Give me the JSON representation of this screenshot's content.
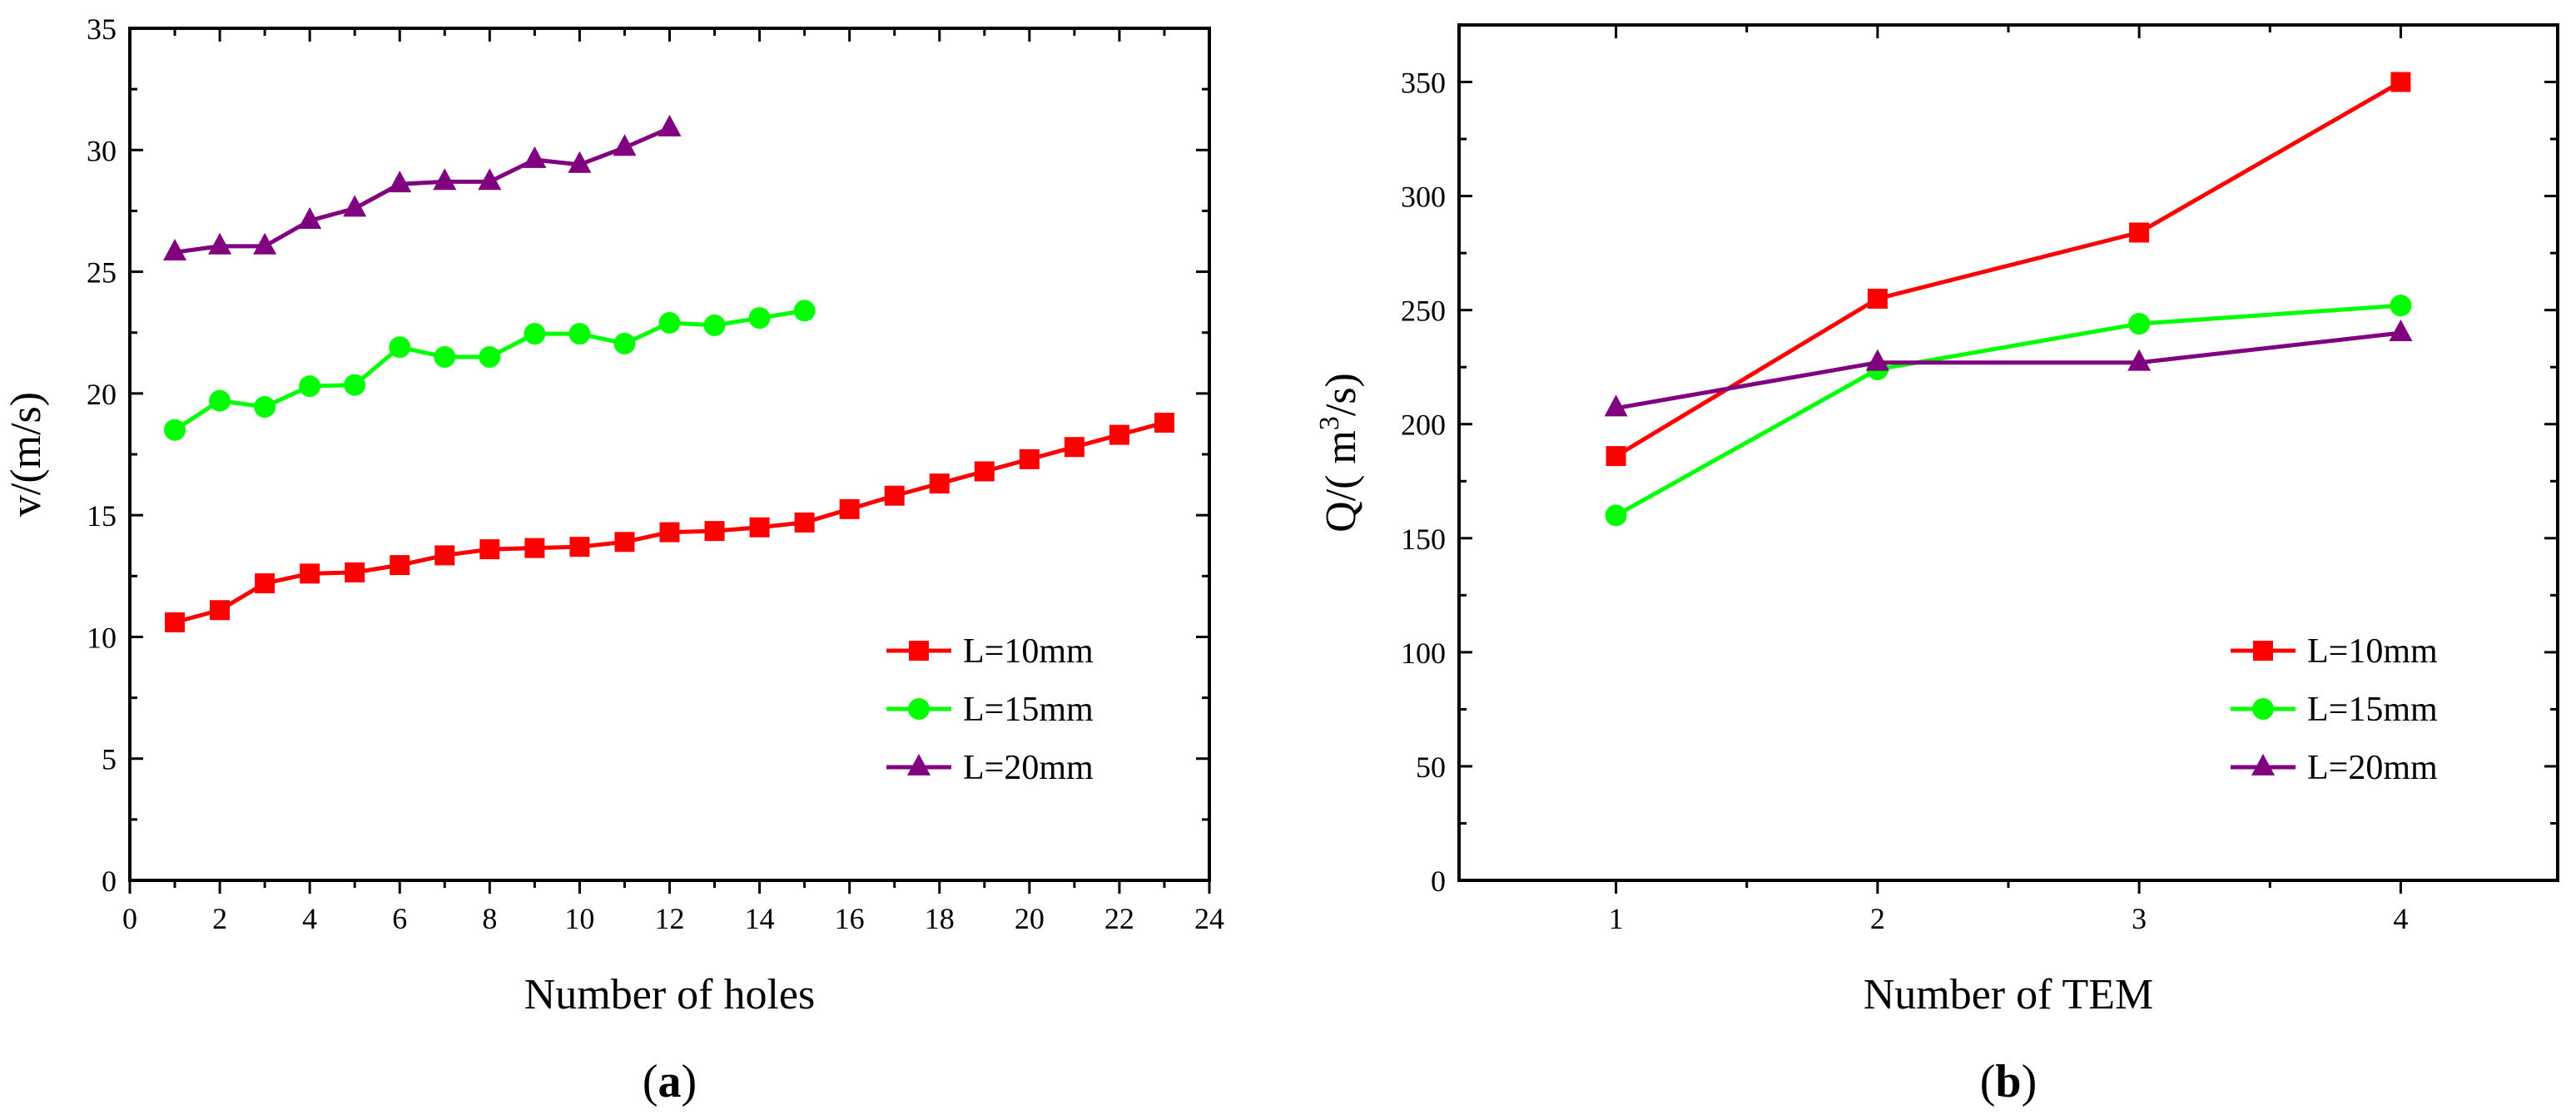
{
  "colors": {
    "L10": "#ff0000",
    "L15": "#00ff00",
    "L20": "#800080",
    "axis": "#000000"
  },
  "chart_data": [
    {
      "id": "a",
      "type": "line",
      "caption": {
        "open": "(",
        "letter": "a",
        "close": ")"
      },
      "xlabel": "Number of holes",
      "ylabel": "v/(m/s)",
      "xlim": [
        0,
        24
      ],
      "ylim": [
        0,
        35
      ],
      "xticks": [
        0,
        2,
        4,
        6,
        8,
        10,
        12,
        14,
        16,
        18,
        20,
        22,
        24
      ],
      "yticks": [
        0,
        5,
        10,
        15,
        20,
        25,
        30,
        35
      ],
      "legend_position": "lower-right",
      "series": [
        {
          "name": "L=10mm",
          "color_key": "L10",
          "marker": "square",
          "x": [
            1,
            2,
            3,
            4,
            5,
            6,
            7,
            8,
            9,
            10,
            11,
            12,
            13,
            14,
            15,
            16,
            17,
            18,
            19,
            20,
            21,
            22,
            23
          ],
          "y": [
            10.6,
            11.1,
            12.2,
            12.6,
            12.65,
            12.95,
            13.35,
            13.6,
            13.65,
            13.7,
            13.9,
            14.3,
            14.35,
            14.5,
            14.7,
            15.25,
            15.8,
            16.3,
            16.8,
            17.3,
            17.8,
            18.3,
            18.8
          ]
        },
        {
          "name": "L=15mm",
          "color_key": "L15",
          "marker": "circle",
          "x": [
            1,
            2,
            3,
            4,
            5,
            6,
            7,
            8,
            9,
            10,
            11,
            12,
            13,
            14,
            15
          ],
          "y": [
            18.5,
            19.7,
            19.45,
            20.3,
            20.35,
            21.9,
            21.5,
            21.5,
            22.45,
            22.45,
            22.05,
            22.9,
            22.8,
            23.1,
            23.4
          ]
        },
        {
          "name": "L=20mm",
          "color_key": "L20",
          "marker": "triangle",
          "x": [
            1,
            2,
            3,
            4,
            5,
            6,
            7,
            8,
            9,
            10,
            11,
            12
          ],
          "y": [
            25.8,
            26.05,
            26.05,
            27.1,
            27.6,
            28.6,
            28.7,
            28.7,
            29.6,
            29.4,
            30.1,
            30.9
          ]
        }
      ]
    },
    {
      "id": "b",
      "type": "line",
      "caption": {
        "open": "(",
        "letter": "b",
        "close": ")"
      },
      "xlabel": "Number of TEM",
      "ylabel": {
        "prefix": "Q/( m",
        "sup": "3",
        "suffix": "/s)"
      },
      "xlim": [
        0.4,
        4.6
      ],
      "ylim": [
        0,
        375
      ],
      "xticks": [
        1,
        2,
        3,
        4
      ],
      "yticks": [
        0,
        50,
        100,
        150,
        200,
        250,
        300,
        350
      ],
      "legend_position": "lower-right",
      "series": [
        {
          "name": "L=10mm",
          "color_key": "L10",
          "marker": "square",
          "x": [
            1,
            2,
            3,
            4
          ],
          "y": [
            186,
            255,
            284,
            350
          ]
        },
        {
          "name": "L=15mm",
          "color_key": "L15",
          "marker": "circle",
          "x": [
            1,
            2,
            3,
            4
          ],
          "y": [
            160,
            224,
            244,
            252
          ]
        },
        {
          "name": "L=20mm",
          "color_key": "L20",
          "marker": "triangle",
          "x": [
            1,
            2,
            3,
            4
          ],
          "y": [
            207,
            227,
            227,
            240
          ]
        }
      ]
    }
  ]
}
